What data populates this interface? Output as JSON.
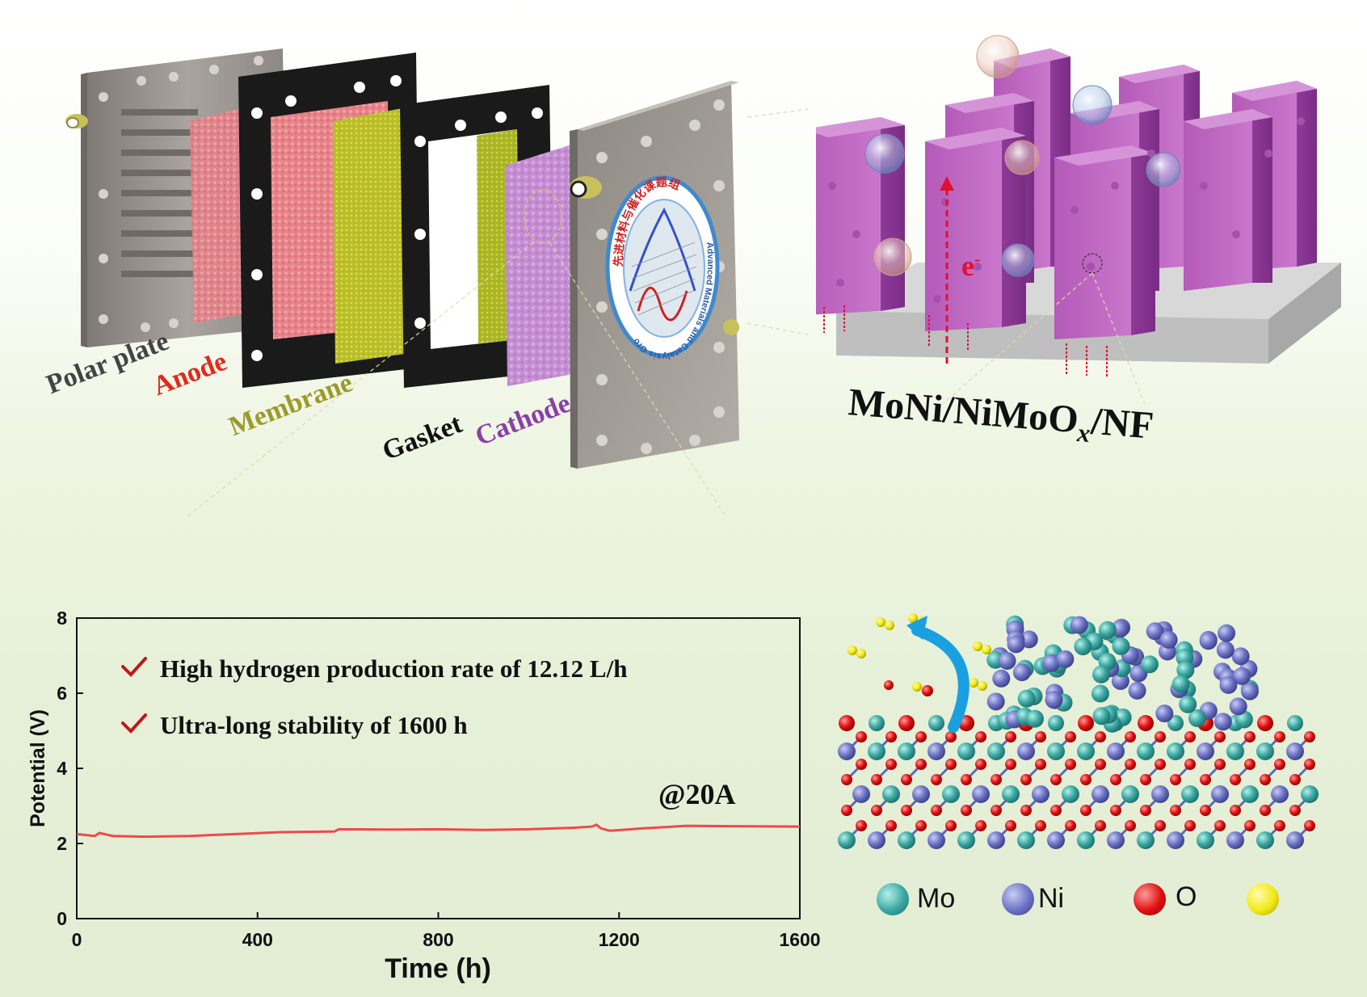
{
  "stack_labels": {
    "polar_plate": "Polar plate",
    "anode": "Anode",
    "membrane": "Membrane",
    "gasket": "Gasket",
    "cathode": "Cathode"
  },
  "catalyst": {
    "name": "MoNi/NiMoO",
    "name_sub": "x",
    "name_suffix": "/NF",
    "electron_label": "e",
    "electron_sup": "-"
  },
  "logo": {
    "text_cn": "先进材料与催化课题组",
    "text_en": "Advanced Materials and Catalysis Group"
  },
  "atom_legend": {
    "mo": "Mo",
    "ni": "Ni",
    "o": "O",
    "colors": {
      "mo": "#3aa7a2",
      "ni": "#6b72c4",
      "o": "#e01010",
      "h": "#f2ea16"
    }
  },
  "chart_data": {
    "type": "line",
    "xlabel": "Time (h)",
    "ylabel": "Potential (V)",
    "xlim": [
      0,
      1600
    ],
    "ylim": [
      0,
      8
    ],
    "xticks": [
      0,
      400,
      800,
      1200,
      1600
    ],
    "yticks": [
      0,
      2,
      4,
      6,
      8
    ],
    "annotation": "@20A",
    "checks": [
      "High hydrogen production rate of 12.12 L/h",
      "Ultra-long stability of 1600 h"
    ],
    "series_color": "#ee4a4a",
    "x": [
      0,
      40,
      50,
      80,
      150,
      250,
      350,
      450,
      570,
      580,
      700,
      800,
      900,
      1000,
      1100,
      1140,
      1150,
      1160,
      1180,
      1250,
      1350,
      1450,
      1600
    ],
    "y": [
      2.25,
      2.2,
      2.28,
      2.2,
      2.18,
      2.2,
      2.25,
      2.3,
      2.32,
      2.38,
      2.37,
      2.38,
      2.36,
      2.38,
      2.42,
      2.45,
      2.5,
      2.4,
      2.34,
      2.4,
      2.47,
      2.46,
      2.45
    ]
  }
}
